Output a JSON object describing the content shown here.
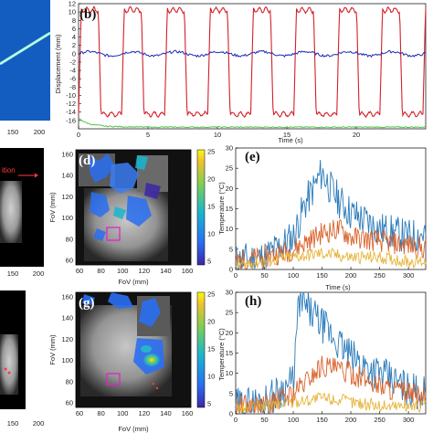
{
  "colors": {
    "red": "#d4202a",
    "blue": "#1f2bb0",
    "green": "#52c24a",
    "t_blue": "#2b7bba",
    "t_orange": "#d9622b",
    "t_yellow": "#e6b43a",
    "magenta": "#e024c8"
  },
  "panels": {
    "a": {
      "ticks": [
        "150",
        "200"
      ]
    },
    "c": {
      "ticks": [
        "150",
        "200"
      ],
      "annotation": "ition"
    },
    "f": {
      "ticks": [
        "150",
        "200"
      ]
    },
    "d": {
      "label": "(d)",
      "xlabel": "FoV (mm)",
      "ylabel": "FoV (mm)",
      "xticks": [
        "60",
        "80",
        "100",
        "120",
        "140",
        "160"
      ],
      "yticks": [
        "160",
        "140",
        "120",
        "100",
        "80",
        "60"
      ],
      "cbar_ticks": [
        "25",
        "20",
        "15",
        "10",
        "5"
      ]
    },
    "g": {
      "label": "(g)",
      "xlabel": "FoV (mm)",
      "ylabel": "FoV (mm)",
      "xticks": [
        "60",
        "80",
        "100",
        "120",
        "140",
        "160"
      ],
      "yticks": [
        "160",
        "140",
        "120",
        "100",
        "80",
        "60"
      ],
      "cbar_ticks": [
        "25",
        "20",
        "15",
        "10",
        "5"
      ]
    }
  },
  "chart_data": [
    {
      "id": "b",
      "type": "line",
      "label": "(b)",
      "xlabel": "Time (s)",
      "ylabel": "Displacement (mm)",
      "xlim": [
        0,
        25
      ],
      "ylim": [
        -18,
        12
      ],
      "xticks": [
        "0",
        "5",
        "10",
        "15",
        "20"
      ],
      "yticks": [
        "12",
        "10",
        "8",
        "6",
        "4",
        "2",
        "0",
        "-2",
        "-4",
        "-6",
        "-8",
        "-10",
        "-12",
        "-14",
        "-16"
      ],
      "series": [
        {
          "color_key": "red",
          "shape": "square wave",
          "x": [
            0,
            3.1,
            6.2,
            9.3,
            12.4,
            15.5,
            18.6,
            21.7,
            24.8
          ],
          "high": 10.5,
          "low": -14.5
        },
        {
          "color_key": "blue",
          "shape": "near zero",
          "values": [
            0,
            -0.4,
            0.3,
            -0.5,
            0.2,
            -0.3,
            0.1
          ]
        },
        {
          "color_key": "green",
          "shape": "decay",
          "x": [
            0,
            0.5,
            1,
            1.5,
            2,
            3,
            5,
            10,
            25
          ],
          "y": [
            -15.5,
            -16.5,
            -17,
            -17.2,
            -17.4,
            -17.5,
            -17.6,
            -17.6,
            -17.6
          ]
        }
      ]
    },
    {
      "id": "e",
      "type": "line",
      "label": "(e)",
      "xlabel": "Time (s)",
      "ylabel": "Temperature (°C)",
      "xlim": [
        0,
        330
      ],
      "ylim": [
        0,
        30
      ],
      "xticks": [
        "0",
        "50",
        "100",
        "150",
        "200",
        "250",
        "300"
      ],
      "yticks": [
        "30",
        "25",
        "20",
        "15",
        "10",
        "5",
        "0"
      ],
      "series": [
        {
          "color_key": "t_blue",
          "x": [
            0,
            50,
            100,
            120,
            150,
            165,
            180,
            200,
            250,
            300,
            330
          ],
          "y": [
            2,
            3,
            8,
            16,
            24,
            20,
            17,
            14,
            10,
            8,
            9
          ]
        },
        {
          "color_key": "t_orange",
          "x": [
            0,
            50,
            100,
            150,
            180,
            200,
            250,
            300,
            330
          ],
          "y": [
            2,
            3,
            5,
            9,
            10,
            8,
            7,
            6,
            5
          ]
        },
        {
          "color_key": "t_yellow",
          "x": [
            0,
            50,
            100,
            150,
            200,
            250,
            300,
            330
          ],
          "y": [
            1,
            2,
            3,
            4,
            3,
            3,
            2,
            2
          ]
        }
      ]
    },
    {
      "id": "h",
      "type": "line",
      "label": "(h)",
      "xlabel": "Time (s)",
      "ylabel": "Temperature (°C)",
      "xlim": [
        0,
        330
      ],
      "ylim": [
        0,
        30
      ],
      "xticks": [
        "0",
        "50",
        "100",
        "150",
        "200",
        "250",
        "300"
      ],
      "yticks": [
        "30",
        "25",
        "20",
        "15",
        "10",
        "5",
        "0"
      ],
      "series": [
        {
          "color_key": "t_blue",
          "x": [
            0,
            50,
            100,
            110,
            150,
            200,
            250,
            300,
            330
          ],
          "y": [
            2,
            3,
            8,
            28,
            22,
            14,
            10,
            6,
            5
          ]
        },
        {
          "color_key": "t_orange",
          "x": [
            0,
            50,
            100,
            150,
            200,
            250,
            300,
            330
          ],
          "y": [
            2,
            2,
            5,
            12,
            10,
            7,
            5,
            4
          ]
        },
        {
          "color_key": "t_yellow",
          "x": [
            0,
            50,
            100,
            150,
            200,
            250,
            300,
            330
          ],
          "y": [
            1,
            2,
            3,
            4,
            3,
            2,
            2,
            2
          ]
        }
      ]
    }
  ]
}
